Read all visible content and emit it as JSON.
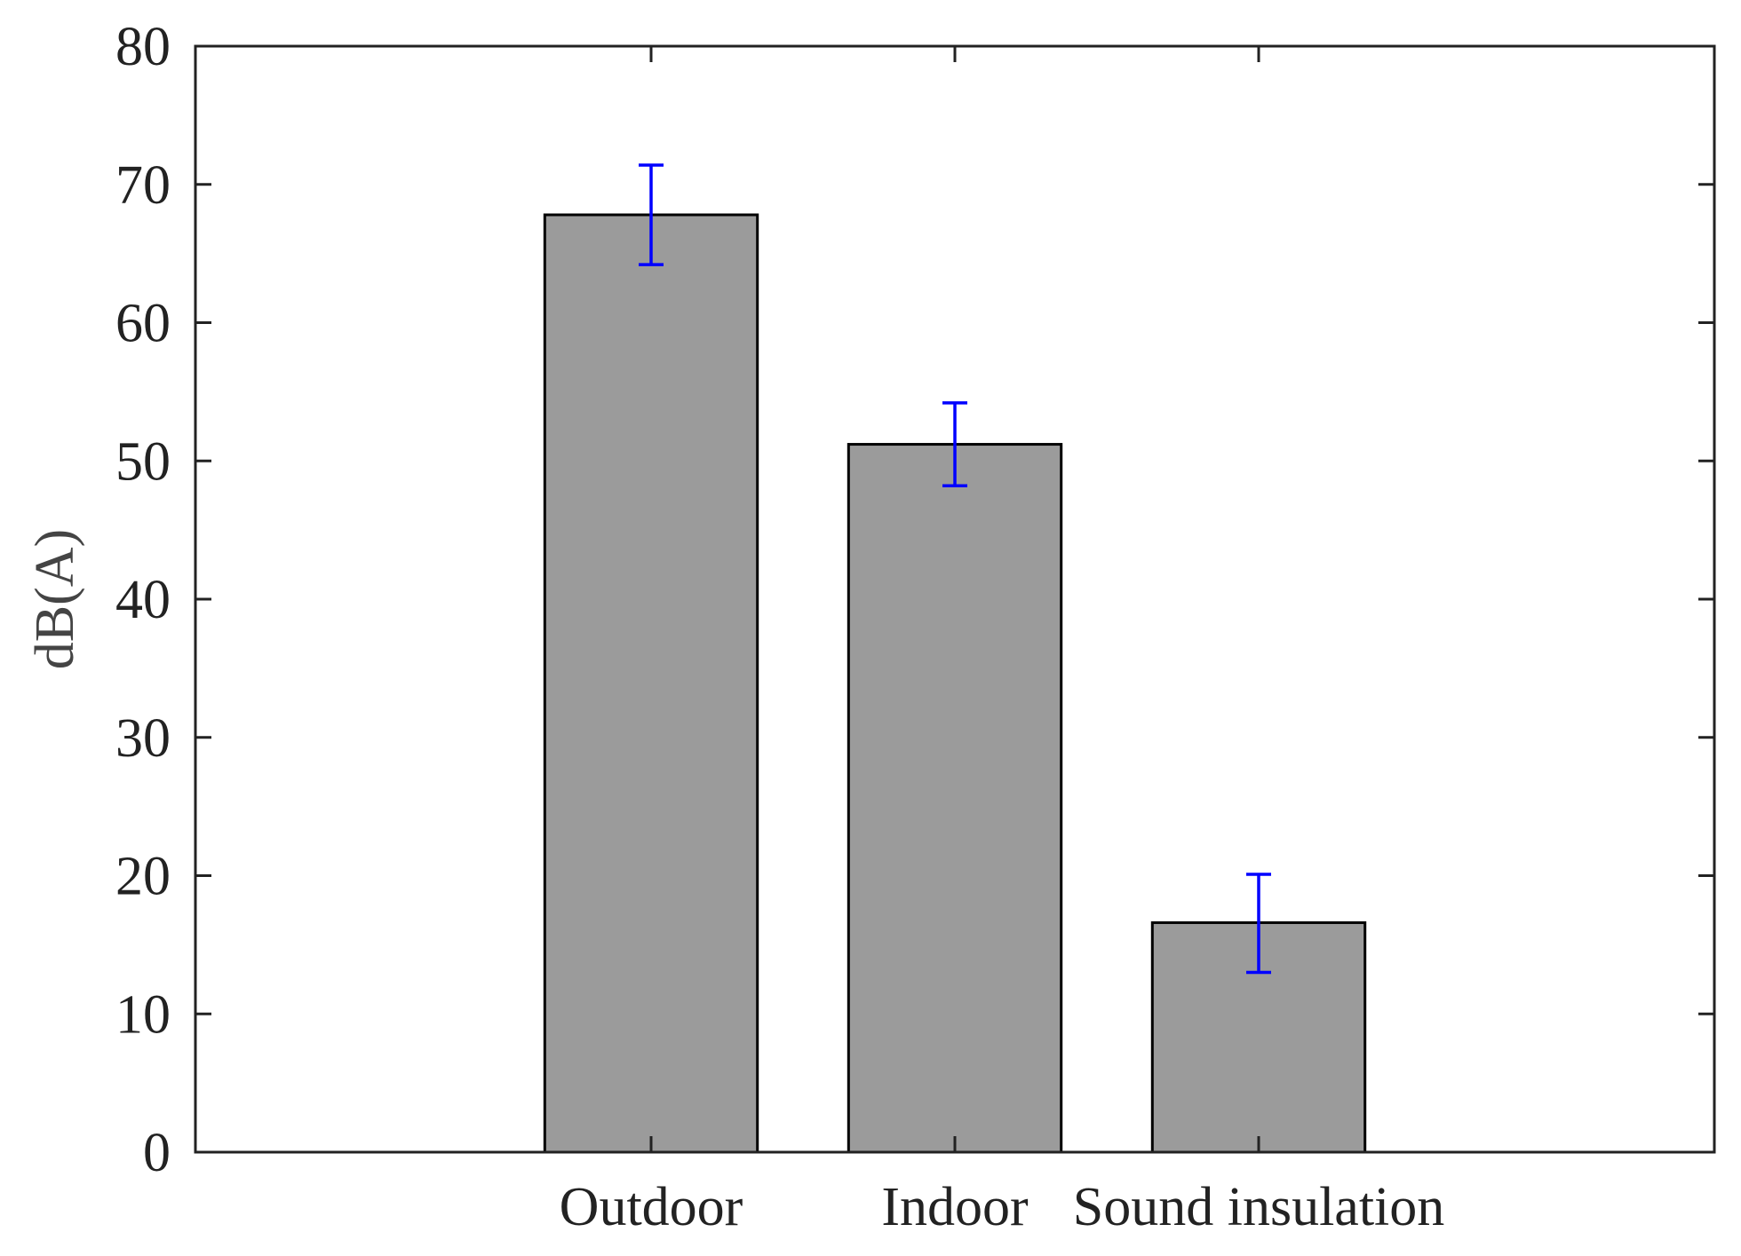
{
  "chart_data": {
    "type": "bar",
    "title": "",
    "xlabel": "",
    "ylabel": "dB(A)",
    "categories": [
      "Outdoor",
      "Indoor",
      "Sound insulation"
    ],
    "values": [
      67.8,
      51.2,
      16.6
    ],
    "error_low": [
      64.2,
      48.2,
      13.0
    ],
    "error_high": [
      71.4,
      54.2,
      20.1
    ],
    "ylim": [
      0,
      80
    ],
    "yticks": [
      0,
      10,
      20,
      30,
      40,
      50,
      60,
      70,
      80
    ],
    "xlim": [
      0,
      5
    ],
    "bar_width": 0.7,
    "grid": false,
    "colors": {
      "bar_fill": "#9b9b9b",
      "bar_edge": "#000000",
      "error_bar": "#0000ff",
      "axis": "#222222"
    }
  }
}
